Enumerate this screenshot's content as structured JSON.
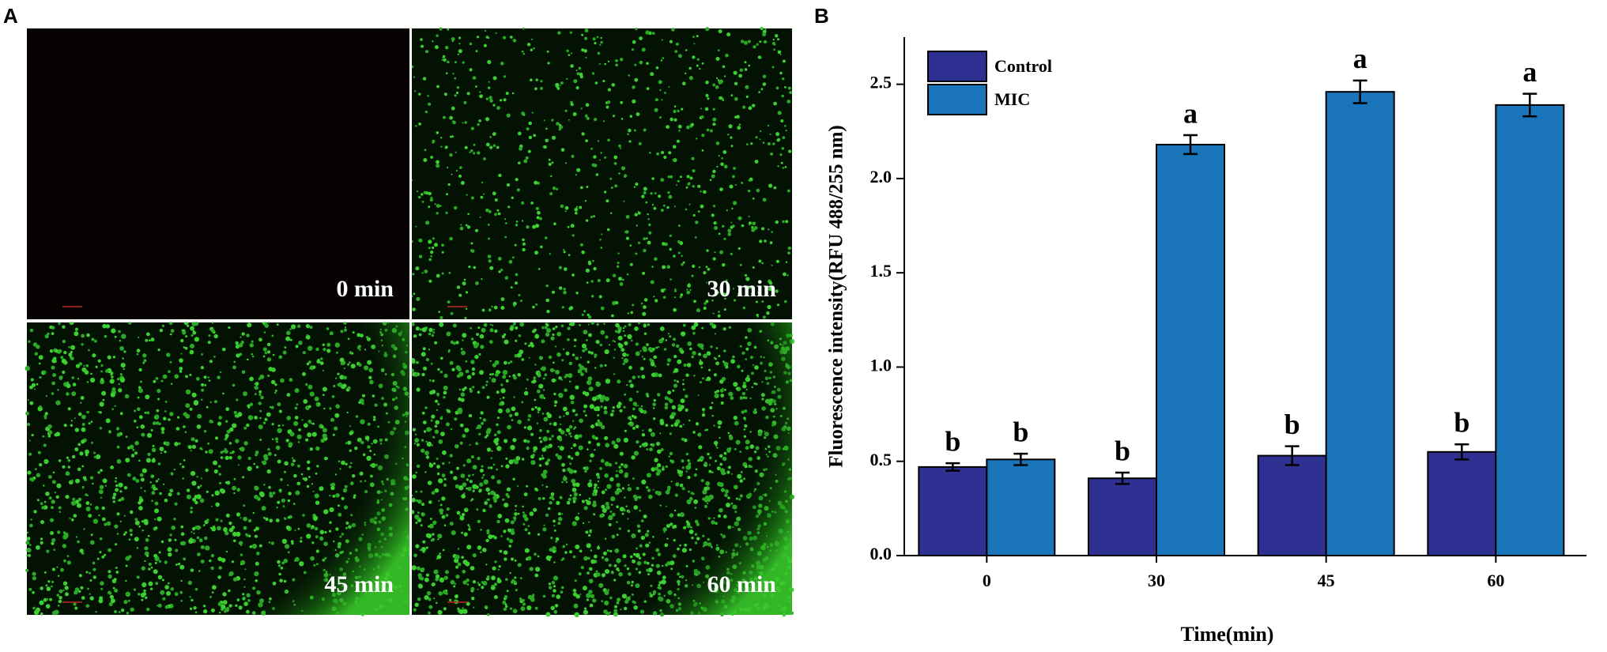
{
  "panels": {
    "a": "A",
    "b": "B"
  },
  "images": [
    {
      "label": "0 min"
    },
    {
      "label": "30 min"
    },
    {
      "label": "45 min"
    },
    {
      "label": "60 min"
    }
  ],
  "chart_data": {
    "type": "bar",
    "categories": [
      "0",
      "30",
      "45",
      "60"
    ],
    "x_label": "Time(min)",
    "y_label": "Fluorescence intensity(RFU 488/255 nm)",
    "series": [
      {
        "name": "Control",
        "color": "#2e3192",
        "values": [
          0.47,
          0.41,
          0.53,
          0.55
        ],
        "errors": [
          0.02,
          0.03,
          0.05,
          0.04
        ],
        "letters": [
          "b",
          "b",
          "b",
          "b"
        ]
      },
      {
        "name": "MIC",
        "color": "#1b75bb",
        "values": [
          0.51,
          2.18,
          2.46,
          2.39
        ],
        "errors": [
          0.03,
          0.05,
          0.06,
          0.06
        ],
        "letters": [
          "b",
          "a",
          "a",
          "a"
        ]
      }
    ],
    "ylim": [
      0,
      2.75
    ],
    "yticks": [
      {
        "value": 0,
        "label": "0.0"
      },
      0.5,
      {
        "value": 1,
        "label": "1.0"
      },
      1.5,
      {
        "value": 2,
        "label": "2.0"
      },
      2.5
    ],
    "legend": "top-left"
  }
}
